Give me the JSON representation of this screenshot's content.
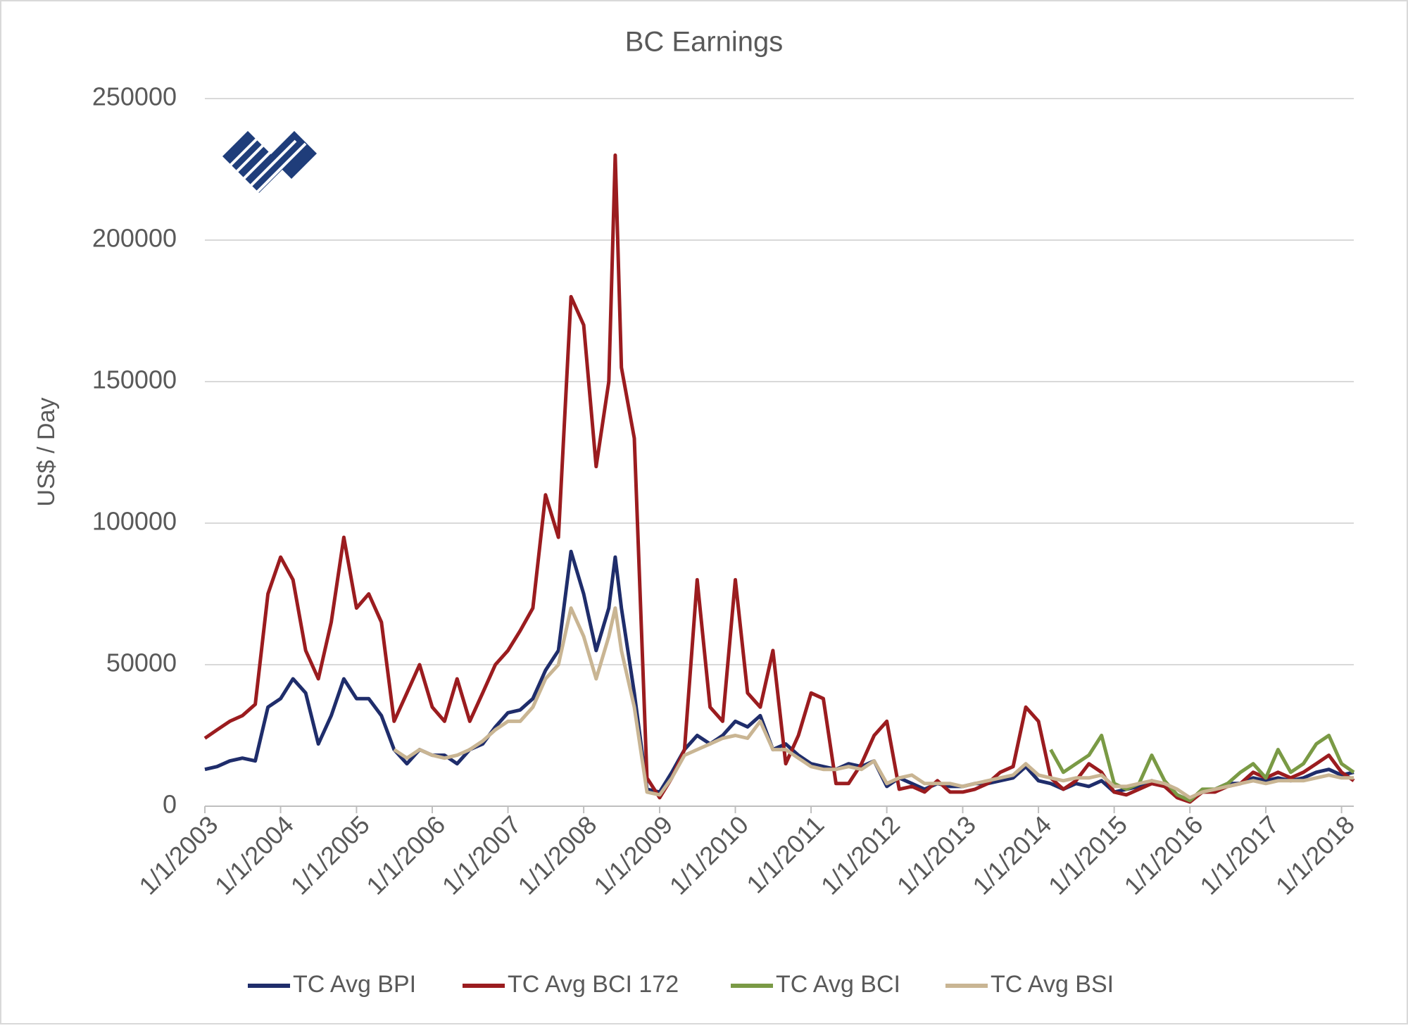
{
  "chart_data": {
    "type": "line",
    "title": "BC Earnings",
    "y_label": "US$ / Day",
    "x": [
      "1/1/2003",
      "3/1/2003",
      "5/1/2003",
      "7/1/2003",
      "9/1/2003",
      "11/1/2003",
      "1/1/2004",
      "3/1/2004",
      "5/1/2004",
      "7/1/2004",
      "9/1/2004",
      "11/1/2004",
      "1/1/2005",
      "3/1/2005",
      "5/1/2005",
      "7/1/2005",
      "9/1/2005",
      "11/1/2005",
      "1/1/2006",
      "3/1/2006",
      "5/1/2006",
      "7/1/2006",
      "9/1/2006",
      "11/1/2006",
      "1/1/2007",
      "3/1/2007",
      "5/1/2007",
      "7/1/2007",
      "9/1/2007",
      "11/1/2007",
      "1/1/2008",
      "3/1/2008",
      "5/1/2008",
      "6/1/2008",
      "7/1/2008",
      "9/1/2008",
      "11/1/2008",
      "1/1/2009",
      "3/1/2009",
      "5/1/2009",
      "7/1/2009",
      "9/1/2009",
      "11/1/2009",
      "1/1/2010",
      "3/1/2010",
      "5/1/2010",
      "7/1/2010",
      "9/1/2010",
      "11/1/2010",
      "1/1/2011",
      "3/1/2011",
      "5/1/2011",
      "7/1/2011",
      "9/1/2011",
      "11/1/2011",
      "1/1/2012",
      "3/1/2012",
      "5/1/2012",
      "7/1/2012",
      "9/1/2012",
      "11/1/2012",
      "1/1/2013",
      "3/1/2013",
      "5/1/2013",
      "7/1/2013",
      "9/1/2013",
      "11/1/2013",
      "1/1/2014",
      "3/1/2014",
      "5/1/2014",
      "7/1/2014",
      "9/1/2014",
      "11/1/2014",
      "1/1/2015",
      "3/1/2015",
      "5/1/2015",
      "7/1/2015",
      "9/1/2015",
      "11/1/2015",
      "1/1/2016",
      "3/1/2016",
      "5/1/2016",
      "7/1/2016",
      "9/1/2016",
      "11/1/2016",
      "1/1/2017",
      "3/1/2017",
      "5/1/2017",
      "7/1/2017",
      "9/1/2017",
      "11/1/2017",
      "1/1/2018",
      "3/1/2018"
    ],
    "series": [
      {
        "name": "TC Avg BPI",
        "color": "#1f2d6b",
        "values": [
          13000,
          14000,
          16000,
          17000,
          16000,
          35000,
          38000,
          45000,
          40000,
          22000,
          32000,
          45000,
          38000,
          38000,
          32000,
          20000,
          15000,
          20000,
          18000,
          18000,
          15000,
          20000,
          22000,
          28000,
          33000,
          34000,
          38000,
          48000,
          55000,
          90000,
          75000,
          55000,
          70000,
          88000,
          70000,
          40000,
          6000,
          5000,
          12000,
          20000,
          25000,
          22000,
          25000,
          30000,
          28000,
          32000,
          20000,
          22000,
          18000,
          15000,
          14000,
          13000,
          15000,
          14000,
          16000,
          7000,
          10000,
          8000,
          6000,
          8000,
          7000,
          7000,
          8000,
          8000,
          9000,
          10000,
          14000,
          9000,
          8000,
          6000,
          8000,
          7000,
          9000,
          5000,
          6000,
          7000,
          9000,
          7000,
          4000,
          2000,
          5000,
          6000,
          8000,
          8000,
          10000,
          9000,
          10000,
          9000,
          10000,
          12000,
          13000,
          11000,
          12000
        ]
      },
      {
        "name": "TC Avg BCI 172",
        "color": "#9b1c1f",
        "values": [
          24000,
          27000,
          30000,
          32000,
          36000,
          75000,
          88000,
          80000,
          55000,
          45000,
          65000,
          95000,
          70000,
          75000,
          65000,
          30000,
          40000,
          50000,
          35000,
          30000,
          45000,
          30000,
          40000,
          50000,
          55000,
          62000,
          70000,
          110000,
          95000,
          180000,
          170000,
          120000,
          150000,
          230000,
          155000,
          130000,
          10000,
          3000,
          10000,
          20000,
          80000,
          35000,
          30000,
          80000,
          40000,
          35000,
          55000,
          15000,
          25000,
          40000,
          38000,
          8000,
          8000,
          15000,
          25000,
          30000,
          6000,
          7000,
          5000,
          9000,
          5000,
          5000,
          6000,
          8000,
          12000,
          14000,
          35000,
          30000,
          10000,
          6000,
          9000,
          15000,
          12000,
          5000,
          4000,
          6000,
          8000,
          7000,
          3000,
          1500,
          5000,
          5000,
          7000,
          8000,
          12000,
          10000,
          12000,
          10000,
          12000,
          15000,
          18000,
          12000,
          9000
        ]
      },
      {
        "name": "TC Avg BCI",
        "color": "#7a9a45",
        "values": [
          null,
          null,
          null,
          null,
          null,
          null,
          null,
          null,
          null,
          null,
          null,
          null,
          null,
          null,
          null,
          null,
          null,
          null,
          null,
          null,
          null,
          null,
          null,
          null,
          null,
          null,
          null,
          null,
          null,
          null,
          null,
          null,
          null,
          null,
          null,
          null,
          null,
          null,
          null,
          null,
          null,
          null,
          null,
          null,
          null,
          null,
          null,
          null,
          null,
          null,
          null,
          null,
          null,
          null,
          null,
          null,
          null,
          null,
          null,
          null,
          null,
          null,
          null,
          null,
          null,
          null,
          null,
          null,
          20000,
          12000,
          15000,
          18000,
          25000,
          8000,
          6000,
          8000,
          18000,
          9000,
          4000,
          2000,
          6000,
          6000,
          8000,
          12000,
          15000,
          10000,
          20000,
          12000,
          15000,
          22000,
          25000,
          15000,
          12000
        ]
      },
      {
        "name": "TC Avg BSI",
        "color": "#c9b593",
        "values": [
          null,
          null,
          null,
          null,
          null,
          null,
          null,
          null,
          null,
          null,
          null,
          null,
          null,
          null,
          null,
          20000,
          17000,
          20000,
          18000,
          17000,
          18000,
          20000,
          23000,
          27000,
          30000,
          30000,
          35000,
          45000,
          50000,
          70000,
          60000,
          45000,
          60000,
          70000,
          55000,
          35000,
          5000,
          4000,
          10000,
          18000,
          20000,
          22000,
          24000,
          25000,
          24000,
          30000,
          20000,
          20000,
          17000,
          14000,
          13000,
          13000,
          14000,
          13000,
          16000,
          8000,
          10000,
          11000,
          8000,
          8000,
          8000,
          7000,
          8000,
          9000,
          10000,
          11000,
          15000,
          11000,
          10000,
          9000,
          10000,
          10000,
          11000,
          7000,
          7000,
          8000,
          9000,
          8000,
          6000,
          3000,
          5000,
          6000,
          7000,
          8000,
          9000,
          8000,
          9000,
          9000,
          9000,
          10000,
          11000,
          10000,
          10000
        ]
      }
    ],
    "xlim": [
      "1/1/2003",
      "3/1/2018"
    ],
    "xticks": [
      "1/1/2003",
      "1/1/2004",
      "1/1/2005",
      "1/1/2006",
      "1/1/2007",
      "1/1/2008",
      "1/1/2009",
      "1/1/2010",
      "1/1/2011",
      "1/1/2012",
      "1/1/2013",
      "1/1/2014",
      "1/1/2015",
      "1/1/2016",
      "1/1/2017",
      "1/1/2018"
    ],
    "ylim": [
      0,
      250000
    ],
    "yticks": [
      0,
      50000,
      100000,
      150000,
      200000,
      250000
    ],
    "grid": true,
    "legend": "bottom"
  }
}
